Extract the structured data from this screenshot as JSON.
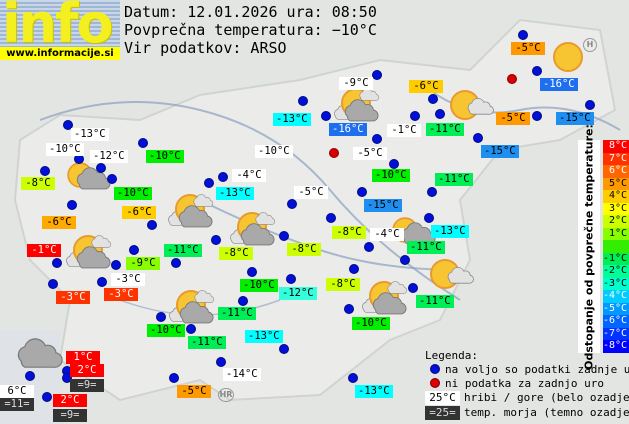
{
  "header": {
    "logo_text": "info",
    "logo_url": "www.informacije.si",
    "date_line": "Datum: 12.01.2026 ura: 08:50",
    "avg_line": "Povprečna temperatura: −10°C",
    "source_line": "Vir podatkov: ARSO"
  },
  "stations": [
    {
      "t": "-5°C",
      "bg": "#ff9900"
    },
    {
      "t": "-16°C",
      "bg": "#1e6ff0",
      "fg": "#fff"
    },
    {
      "t": "-15°C",
      "bg": "#1e8ff0"
    },
    {
      "t": "-5°C",
      "bg": "#ff9900"
    },
    {
      "t": "-15°C",
      "bg": "#1e8ff0"
    },
    {
      "t": "-9°C",
      "bg": "#ffffff"
    },
    {
      "t": "-6°C",
      "bg": "#ffcc00"
    },
    {
      "t": "-11°C",
      "bg": "#00ee55"
    },
    {
      "t": "-1°C",
      "bg": "#ffffff"
    },
    {
      "t": "-13°C",
      "bg": "#00ffff"
    },
    {
      "t": "-16°C",
      "bg": "#1e6ff0",
      "fg": "#fff"
    },
    {
      "t": "-5°C",
      "bg": "#ffffff"
    },
    {
      "t": "-10°C",
      "bg": "#ffffff"
    },
    {
      "t": "-13°C",
      "bg": "#ffffff"
    },
    {
      "t": "-10°C",
      "bg": "#ffffff"
    },
    {
      "t": "-12°C",
      "bg": "#ffffff"
    },
    {
      "t": "-10°C",
      "bg": "#00ee00"
    },
    {
      "t": "-8°C",
      "bg": "#ccff00"
    },
    {
      "t": "-10°C",
      "bg": "#00ee00"
    },
    {
      "t": "-6°C",
      "bg": "#ffaa00"
    },
    {
      "t": "-6°C",
      "bg": "#ffcc00"
    },
    {
      "t": "-1°C",
      "bg": "#ff0000",
      "fg": "#fff"
    },
    {
      "t": "-9°C",
      "bg": "#88ff00"
    },
    {
      "t": "-11°C",
      "bg": "#00ee55"
    },
    {
      "t": "-3°C",
      "bg": "#ffffff"
    },
    {
      "t": "-3°C",
      "bg": "#ff3300",
      "fg": "#fff"
    },
    {
      "t": "-3°C",
      "bg": "#ff3300",
      "fg": "#fff"
    },
    {
      "t": "-4°C",
      "bg": "#ffffff"
    },
    {
      "t": "-13°C",
      "bg": "#00ffff"
    },
    {
      "t": "-10°C",
      "bg": "#00ee00"
    },
    {
      "t": "-11°C",
      "bg": "#00ee55"
    },
    {
      "t": "-5°C",
      "bg": "#ffffff"
    },
    {
      "t": "-15°C",
      "bg": "#1e8ff0"
    },
    {
      "t": "-8°C",
      "bg": "#ccff00"
    },
    {
      "t": "-8°C",
      "bg": "#ccff00"
    },
    {
      "t": "-8°C",
      "bg": "#ccff00"
    },
    {
      "t": "-4°C",
      "bg": "#ffffff"
    },
    {
      "t": "-13°C",
      "bg": "#00ffff"
    },
    {
      "t": "-11°C",
      "bg": "#00ee55"
    },
    {
      "t": "-10°C",
      "bg": "#00ee00"
    },
    {
      "t": "-12°C",
      "bg": "#33ffdd"
    },
    {
      "t": "-8°C",
      "bg": "#ccff00"
    },
    {
      "t": "-11°C",
      "bg": "#00ee55"
    },
    {
      "t": "-10°C",
      "bg": "#00ee00"
    },
    {
      "t": "-11°C",
      "bg": "#00ee55"
    },
    {
      "t": "-13°C",
      "bg": "#00ffff"
    },
    {
      "t": "-10°C",
      "bg": "#00ee00"
    },
    {
      "t": "-11°C",
      "bg": "#00ee55"
    },
    {
      "t": "-14°C",
      "bg": "#ffffff"
    },
    {
      "t": "-5°C",
      "bg": "#ff9900"
    },
    {
      "t": "-13°C",
      "bg": "#00ffff"
    },
    {
      "t": "1°C",
      "bg": "#ff0000",
      "fg": "#fff"
    },
    {
      "t": "2°C",
      "bg": "#ff0000",
      "fg": "#fff"
    },
    {
      "t": "=9=",
      "bg": "#333333",
      "fg": "#ddd"
    },
    {
      "t": "6°C",
      "bg": "#ffffff"
    },
    {
      "t": "=11=",
      "bg": "#333333",
      "fg": "#ddd"
    },
    {
      "t": "2°C",
      "bg": "#ff0000",
      "fg": "#fff"
    },
    {
      "t": "=9=",
      "bg": "#333333",
      "fg": "#ddd"
    }
  ],
  "scale": {
    "title": "Odstopanje od povprečne temperature:",
    "steps": [
      {
        "l": "8°C",
        "c": "#ff0000"
      },
      {
        "l": "7°C",
        "c": "#ff3300"
      },
      {
        "l": "6°C",
        "c": "#ff6600"
      },
      {
        "l": "5°C",
        "c": "#ff9900"
      },
      {
        "l": "4°C",
        "c": "#ffcc00"
      },
      {
        "l": "3°C",
        "c": "#ffff00"
      },
      {
        "l": "2°C",
        "c": "#ccff00"
      },
      {
        "l": "1°C",
        "c": "#88ff00"
      },
      {
        "l": "",
        "c": "#33ee00"
      },
      {
        "l": "-1°C",
        "c": "#00ee55"
      },
      {
        "l": "-2°C",
        "c": "#00ff99"
      },
      {
        "l": "-3°C",
        "c": "#00ffcc"
      },
      {
        "l": "-4°C",
        "c": "#00ccff"
      },
      {
        "l": "-5°C",
        "c": "#0099ff"
      },
      {
        "l": "-6°C",
        "c": "#0066ff"
      },
      {
        "l": "-7°C",
        "c": "#0033ff"
      },
      {
        "l": "-8°C",
        "c": "#0000ff"
      }
    ]
  },
  "legend": {
    "title": "Legenda:",
    "blue_dot": "na voljo so podatki zadnje ure",
    "red_dot": "ni podatka za zadnjo uro",
    "hill_sample": "25°C",
    "hill_text": "hribi / gore (belo ozadje)",
    "sea_sample": "=25=",
    "sea_text": "temp. morja (temno ozadje)"
  },
  "map_labels": {
    "hr": "HR",
    "h": "H"
  }
}
